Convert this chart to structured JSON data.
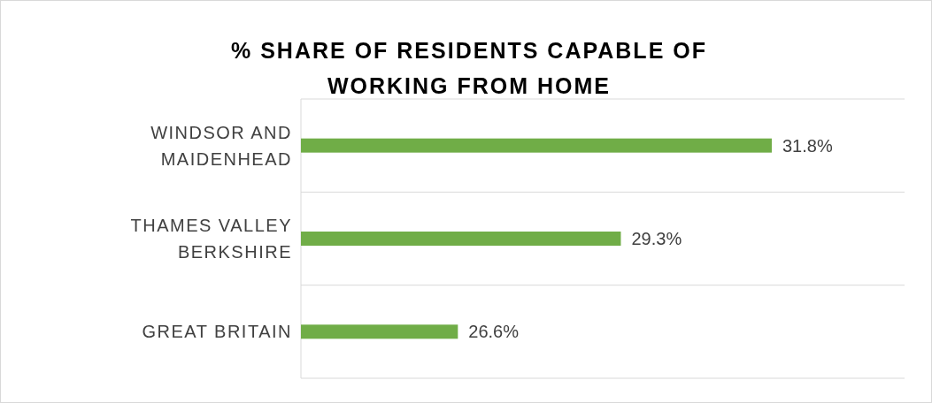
{
  "chart_data": {
    "type": "bar",
    "orientation": "horizontal",
    "title": "% SHARE OF RESIDENTS CAPABLE OF WORKING FROM HOME",
    "categories": [
      "WINDSOR AND MAIDENHEAD",
      "THAMES VALLEY BERKSHIRE",
      "GREAT BRITAIN"
    ],
    "series": [
      {
        "color": "#70ad47",
        "values": [
          31.8,
          29.3,
          26.6
        ],
        "value_labels": [
          "31.8%",
          "29.3%",
          "26.6%"
        ]
      }
    ],
    "xlim": [
      24,
      34
    ],
    "grid": "y",
    "tick_labels": "y"
  }
}
